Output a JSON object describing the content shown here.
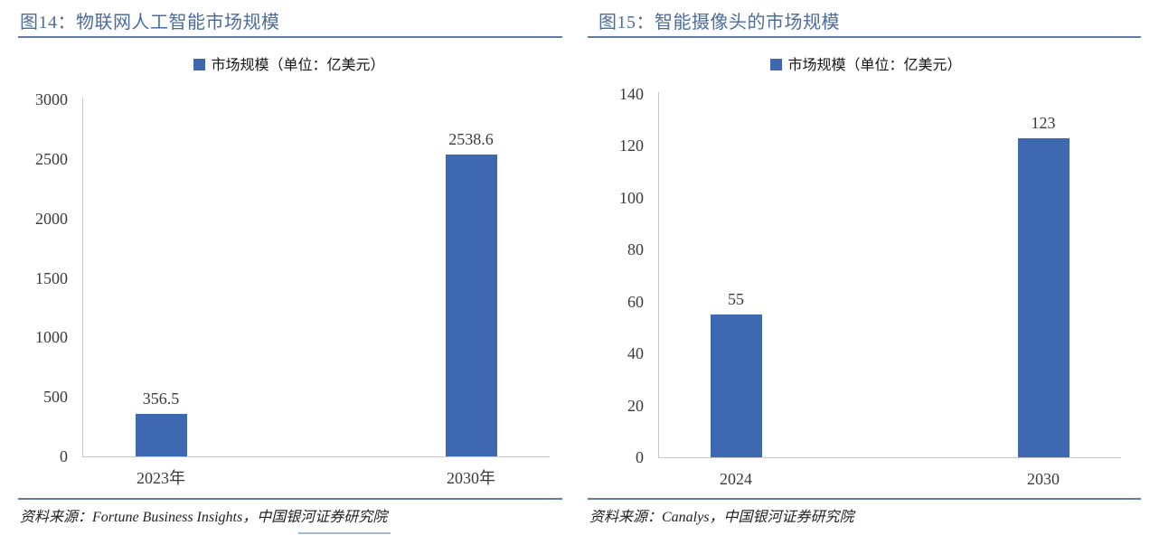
{
  "colors": {
    "bar": "#3E68AF",
    "title_text": "#4A6C9E",
    "divider_rule": "#5F7CA3",
    "axis_line": "#C8C8C8",
    "tick_text": "#3A3A3A",
    "source_text": "#1F1F1F"
  },
  "chart_data": [
    {
      "type": "bar",
      "title": "图14：物联网人工智能市场规模",
      "series_name": "市场规模（单位：亿美元）",
      "categories": [
        "2023年",
        "2030年"
      ],
      "values": [
        356.5,
        2538.6
      ],
      "value_labels": [
        "356.5",
        "2538.6"
      ],
      "ylim": [
        0,
        3000
      ],
      "ytick_step": 500,
      "grid": false,
      "legend_position": "top",
      "source": "资料来源：Fortune Business Insights，中国银河证券研究院"
    },
    {
      "type": "bar",
      "title": "图15：智能摄像头的市场规模",
      "series_name": "市场规模（单位：亿美元）",
      "categories": [
        "2024",
        "2030"
      ],
      "values": [
        55,
        123
      ],
      "value_labels": [
        "55",
        "123"
      ],
      "ylim": [
        0,
        140
      ],
      "ytick_step": 20,
      "grid": false,
      "legend_position": "top",
      "source": "资料来源：Canalys，中国银河证券研究院"
    }
  ]
}
